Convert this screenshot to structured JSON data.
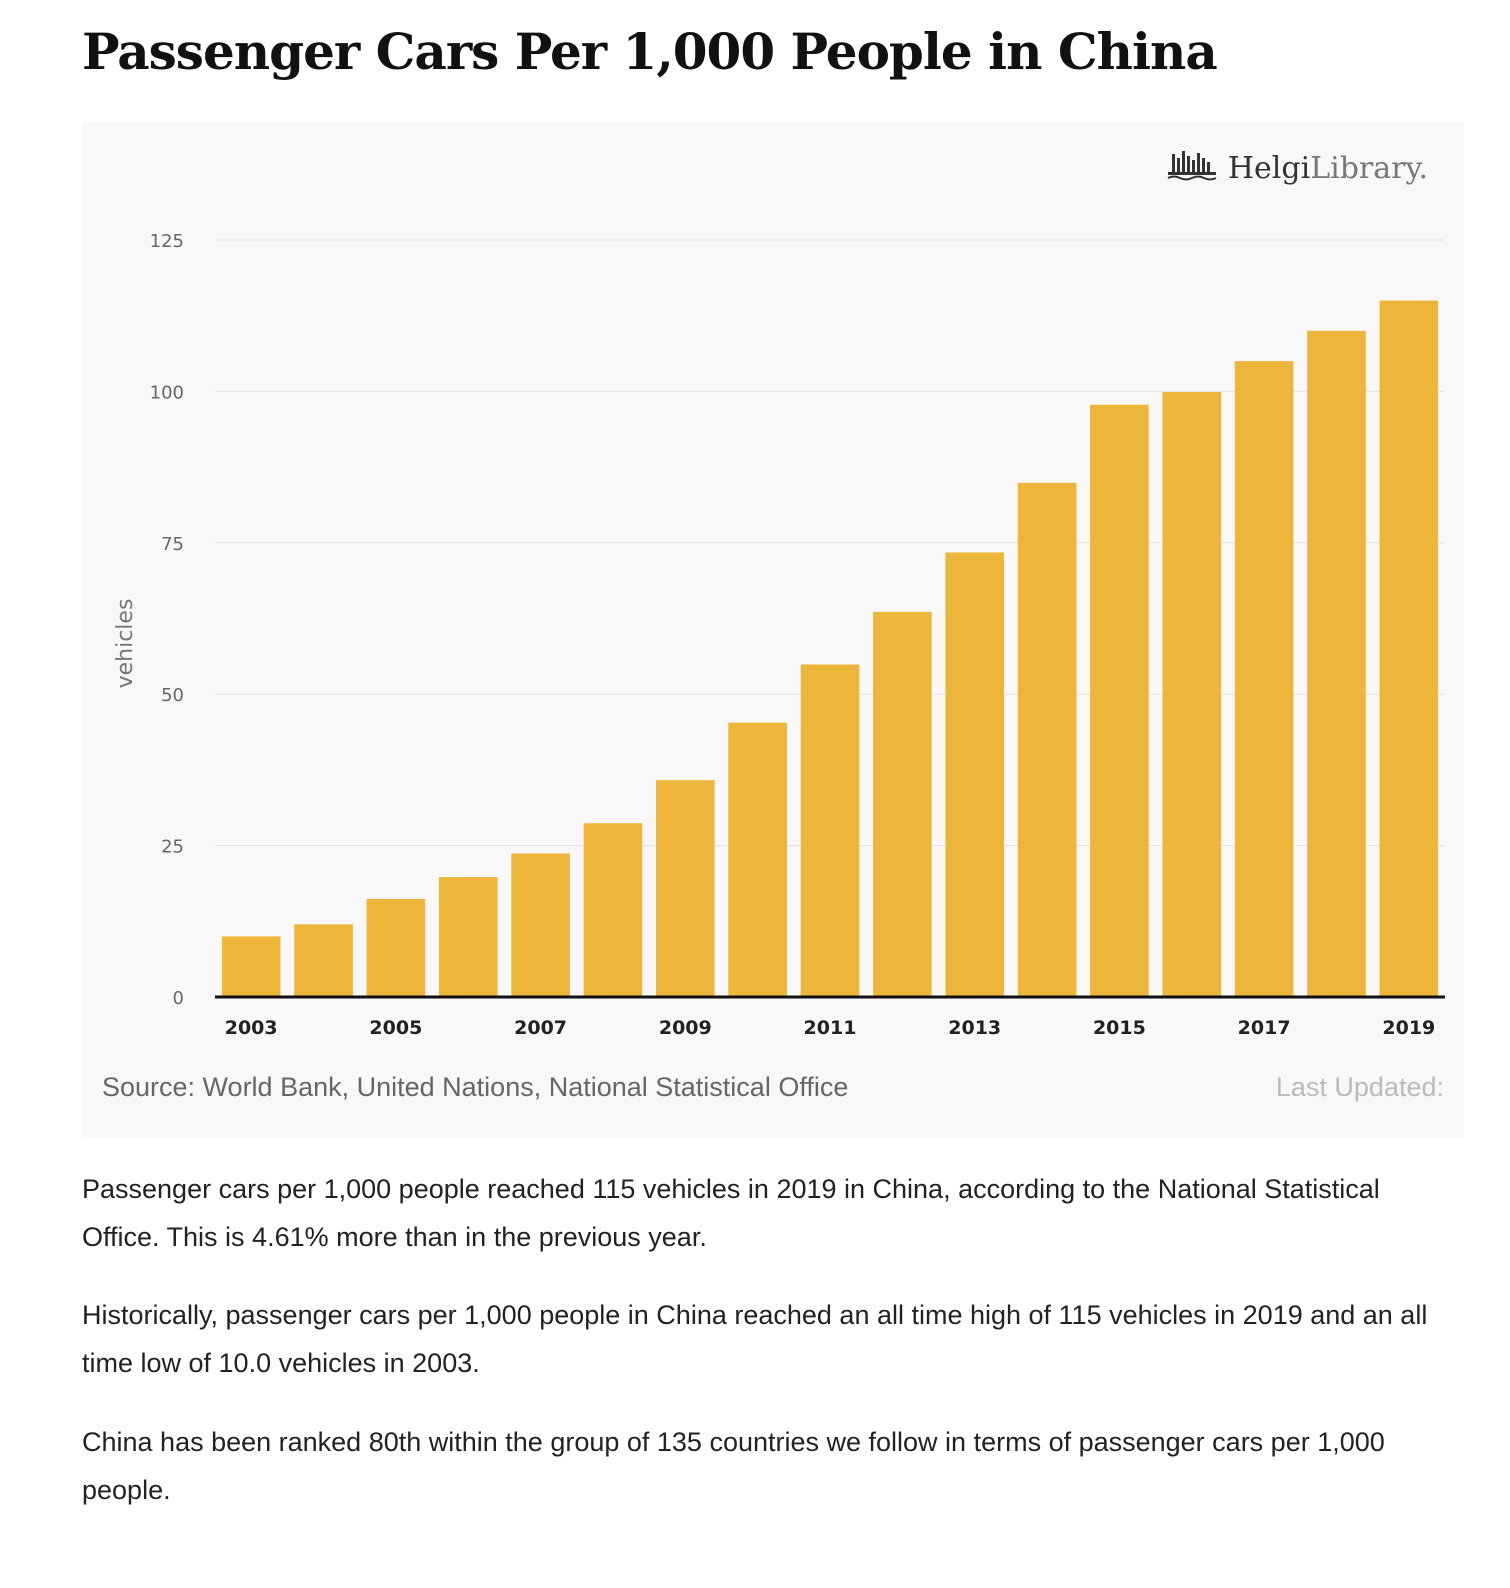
{
  "page": {
    "title": "Passenger Cars Per 1,000 People in China",
    "logo": {
      "icon": "helgi-library-logo-icon",
      "bold": "Helgi",
      "light": "Library."
    },
    "source": "Source: World Bank, United Nations, National Statistical Office",
    "last_updated": "Last Updated:",
    "paragraphs": [
      "Passenger cars per 1,000 people reached 115 vehicles in 2019 in China, according to the National Statistical Office. This is 4.61% more than in the previous year.",
      "Historically, passenger cars per 1,000 people in China reached an all time high of 115 vehicles in 2019 and an all time low of 10.0 vehicles in 2003.",
      "China has been ranked 80th within the group of 135 countries we follow in terms of passenger cars per 1,000 people."
    ]
  },
  "colors": {
    "bar": "#EDB53A",
    "axis": "#111111",
    "grid": "#e2e2e2"
  },
  "chart_data": {
    "type": "bar",
    "title": "Passenger Cars Per 1,000 People in China",
    "xlabel": "",
    "ylabel": "vehicles",
    "ylim": [
      0,
      125
    ],
    "yticks": [
      0,
      25,
      50,
      75,
      100,
      125
    ],
    "grid": true,
    "categories": [
      "2003",
      "2004",
      "2005",
      "2006",
      "2007",
      "2008",
      "2009",
      "2010",
      "2011",
      "2012",
      "2013",
      "2014",
      "2015",
      "2016",
      "2017",
      "2018",
      "2019"
    ],
    "x_tick_labels": [
      "2003",
      "",
      "2005",
      "",
      "2007",
      "",
      "2009",
      "",
      "2011",
      "",
      "2013",
      "",
      "2015",
      "",
      "2017",
      "",
      "2019"
    ],
    "values": [
      10.0,
      12.0,
      16.2,
      19.8,
      23.7,
      28.7,
      35.8,
      45.3,
      54.9,
      63.6,
      73.4,
      84.9,
      97.8,
      99.9,
      105.0,
      110.0,
      115.0
    ]
  }
}
